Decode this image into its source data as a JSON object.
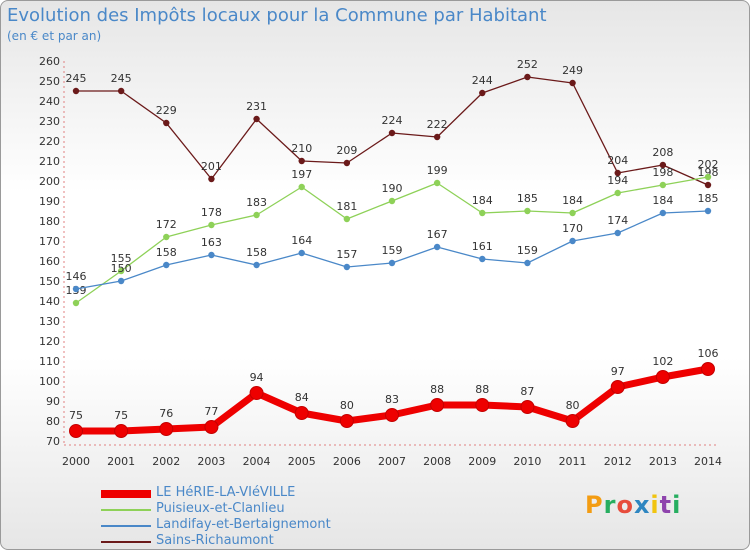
{
  "chart_data": {
    "type": "line",
    "title": "Evolution des Impôts locaux pour la Commune par Habitant",
    "subtitle": "(en € et par an)",
    "x": [
      2000,
      2001,
      2002,
      2003,
      2004,
      2005,
      2006,
      2007,
      2008,
      2009,
      2010,
      2011,
      2012,
      2013,
      2014
    ],
    "ylim": [
      70,
      260
    ],
    "ystep": 10,
    "grid": false,
    "series": [
      {
        "name": "Sains-Richaumont",
        "color": "#6b1a1a",
        "values": [
          245,
          245,
          229,
          201,
          231,
          210,
          209,
          224,
          222,
          244,
          252,
          249,
          204,
          208,
          198
        ]
      },
      {
        "name": "Puisieux-et-Clanlieu",
        "color": "#8ed158",
        "values": [
          139,
          155,
          172,
          178,
          183,
          197,
          181,
          190,
          199,
          184,
          185,
          184,
          194,
          198,
          202
        ]
      },
      {
        "name": "Landifay-et-Bertaignemont",
        "color": "#4a88c8",
        "values": [
          146,
          150,
          158,
          163,
          158,
          164,
          157,
          159,
          167,
          161,
          159,
          170,
          174,
          184,
          185
        ]
      },
      {
        "name": "LE HéRIE-LA-VIéVILLE",
        "color": "#ee0000",
        "values": [
          75,
          75,
          76,
          77,
          94,
          84,
          80,
          83,
          88,
          88,
          87,
          80,
          97,
          102,
          106
        ]
      }
    ],
    "legend_position": "bottom-left"
  },
  "logo": {
    "letters": [
      "P",
      "r",
      "o",
      "x",
      "i",
      "t",
      "i"
    ],
    "colors": [
      "#f39c12",
      "#27ae60",
      "#e74c3c",
      "#2e86c1",
      "#f1c40f",
      "#8e44ad",
      "#27ae60"
    ]
  }
}
